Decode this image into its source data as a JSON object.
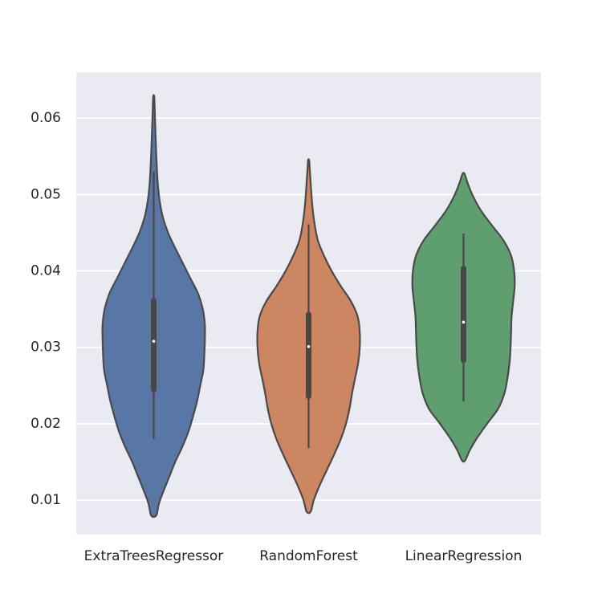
{
  "chart_data": {
    "type": "violin",
    "categories": [
      "ExtraTreesRegressor",
      "RandomForest",
      "LinearRegression"
    ],
    "colors": [
      "#5876a6",
      "#cd8662",
      "#5f9e6e"
    ],
    "ylim": [
      0.0055,
      0.066
    ],
    "yticks": [
      "0.01",
      "0.02",
      "0.03",
      "0.04",
      "0.05",
      "0.06"
    ],
    "grid": true,
    "background": "#eaeaf2",
    "violins": [
      {
        "name": "ExtraTreesRegressor",
        "min": 0.018,
        "q1": 0.0245,
        "median": 0.0308,
        "q3": 0.0361,
        "max": 0.053,
        "kde_low": 0.008,
        "kde_high": 0.0628,
        "profile": [
          [
            0.008,
            0.05
          ],
          [
            0.0095,
            0.1
          ],
          [
            0.011,
            0.18
          ],
          [
            0.013,
            0.3
          ],
          [
            0.015,
            0.42
          ],
          [
            0.017,
            0.56
          ],
          [
            0.019,
            0.68
          ],
          [
            0.021,
            0.77
          ],
          [
            0.023,
            0.85
          ],
          [
            0.025,
            0.91
          ],
          [
            0.027,
            0.97
          ],
          [
            0.029,
            0.99
          ],
          [
            0.031,
            1.0
          ],
          [
            0.033,
            1.0
          ],
          [
            0.035,
            0.96
          ],
          [
            0.037,
            0.87
          ],
          [
            0.039,
            0.72
          ],
          [
            0.041,
            0.57
          ],
          [
            0.043,
            0.42
          ],
          [
            0.045,
            0.28
          ],
          [
            0.047,
            0.18
          ],
          [
            0.049,
            0.12
          ],
          [
            0.051,
            0.085
          ],
          [
            0.053,
            0.065
          ],
          [
            0.056,
            0.045
          ],
          [
            0.059,
            0.03
          ],
          [
            0.061,
            0.02
          ],
          [
            0.0628,
            0.01
          ]
        ]
      },
      {
        "name": "RandomForest",
        "min": 0.0168,
        "q1": 0.0236,
        "median": 0.0301,
        "q3": 0.0343,
        "max": 0.0461,
        "kde_low": 0.0085,
        "kde_high": 0.0545,
        "profile": [
          [
            0.0085,
            0.04
          ],
          [
            0.01,
            0.1
          ],
          [
            0.012,
            0.22
          ],
          [
            0.014,
            0.36
          ],
          [
            0.016,
            0.5
          ],
          [
            0.018,
            0.63
          ],
          [
            0.02,
            0.73
          ],
          [
            0.022,
            0.8
          ],
          [
            0.024,
            0.85
          ],
          [
            0.026,
            0.91
          ],
          [
            0.028,
            0.97
          ],
          [
            0.03,
            1.0
          ],
          [
            0.032,
            1.0
          ],
          [
            0.034,
            0.96
          ],
          [
            0.036,
            0.83
          ],
          [
            0.038,
            0.63
          ],
          [
            0.04,
            0.45
          ],
          [
            0.042,
            0.3
          ],
          [
            0.044,
            0.18
          ],
          [
            0.046,
            0.12
          ],
          [
            0.048,
            0.08
          ],
          [
            0.05,
            0.055
          ],
          [
            0.052,
            0.035
          ],
          [
            0.0535,
            0.02
          ],
          [
            0.0545,
            0.01
          ]
        ]
      },
      {
        "name": "LinearRegression",
        "min": 0.0229,
        "q1": 0.0283,
        "median": 0.0333,
        "q3": 0.0403,
        "max": 0.0449,
        "kde_low": 0.0152,
        "kde_high": 0.0527,
        "profile": [
          [
            0.0152,
            0.03
          ],
          [
            0.0165,
            0.12
          ],
          [
            0.018,
            0.25
          ],
          [
            0.02,
            0.46
          ],
          [
            0.022,
            0.68
          ],
          [
            0.024,
            0.8
          ],
          [
            0.026,
            0.86
          ],
          [
            0.028,
            0.9
          ],
          [
            0.03,
            0.92
          ],
          [
            0.032,
            0.93
          ],
          [
            0.034,
            0.94
          ],
          [
            0.036,
            0.97
          ],
          [
            0.038,
            1.0
          ],
          [
            0.04,
            0.99
          ],
          [
            0.042,
            0.93
          ],
          [
            0.044,
            0.78
          ],
          [
            0.046,
            0.55
          ],
          [
            0.048,
            0.33
          ],
          [
            0.05,
            0.17
          ],
          [
            0.0515,
            0.08
          ],
          [
            0.0527,
            0.02
          ]
        ]
      }
    ]
  }
}
